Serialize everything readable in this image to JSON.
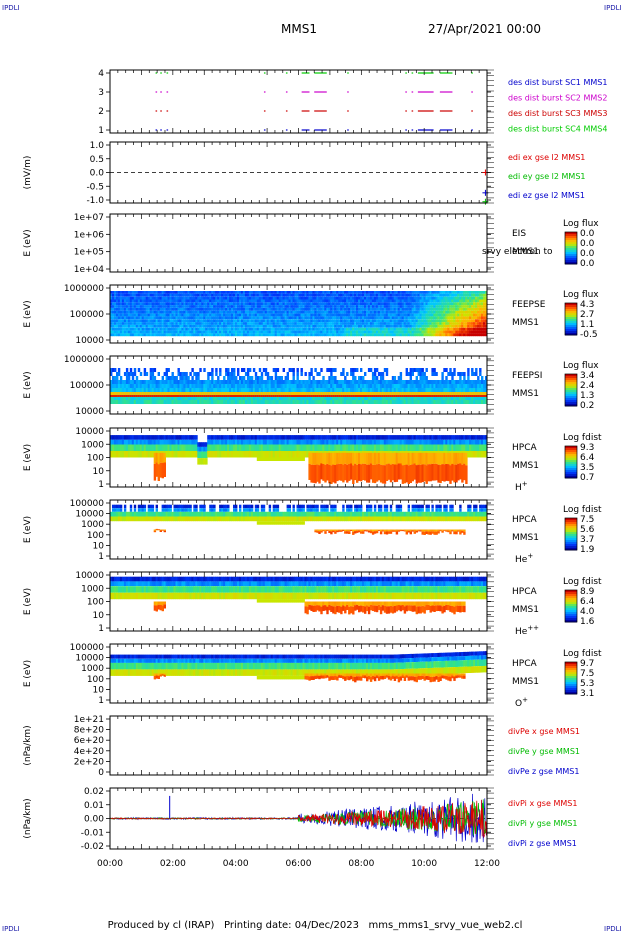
{
  "header": {
    "corner_label": "IPDLI",
    "spacecraft": "MMS1",
    "date": "27/Apr/2021 00:00"
  },
  "footer": {
    "produced": "Produced by cl (IRAP)",
    "printing": "Printing date: 04/Dec/2023",
    "file": "mms_mms1_srvy_vue_web2.cl"
  },
  "colors": {
    "mms1": "#0000cc",
    "mms2": "#cc00cc",
    "mms3": "#cc0000",
    "mms4": "#00cc00",
    "ex": "#dd0000",
    "ey": "#00bb00",
    "ez": "#0000cc"
  },
  "chart_data": [
    {
      "type": "timeline",
      "panel": "burst",
      "ylabel": "",
      "yticks": [
        "4",
        "3",
        "2",
        "1"
      ],
      "xlim": [
        "00:00",
        "12:00"
      ],
      "legend": [
        {
          "label": "des dist burst SC1 MMS1",
          "color": "#0000cc"
        },
        {
          "label": "des dist burst SC2 MMS2",
          "color": "#cc00cc"
        },
        {
          "label": "des dist burst SC3 MMS3",
          "color": "#cc0000"
        },
        {
          "label": "des dist burst SC4 MMS4",
          "color": "#00cc00"
        }
      ],
      "intervals_hours": [
        [
          1.45,
          1.5
        ],
        [
          1.6,
          1.65
        ],
        [
          1.8,
          1.85
        ],
        [
          4.9,
          4.95
        ],
        [
          5.6,
          5.65
        ],
        [
          6.1,
          6.35
        ],
        [
          6.5,
          6.9
        ],
        [
          7.55,
          7.6
        ],
        [
          9.4,
          9.45
        ],
        [
          9.6,
          9.65
        ],
        [
          9.8,
          10.3
        ],
        [
          10.5,
          10.9
        ],
        [
          11.5,
          11.55
        ]
      ]
    },
    {
      "type": "line",
      "panel": "edi",
      "ylabel": "(mV/m)",
      "yticks": [
        "1.0",
        "0.5",
        "0.0",
        "-0.5",
        "-1.0"
      ],
      "ylim": [
        -1.2,
        1.2
      ],
      "legend": [
        {
          "label": "edi ex gse l2 MMS1",
          "color": "#dd0000"
        },
        {
          "label": "edi ey gse l2 MMS1",
          "color": "#00bb00"
        },
        {
          "label": "edi ez gse l2 MMS1",
          "color": "#0000cc"
        }
      ],
      "points": [
        {
          "t": 11.95,
          "v": 0.0,
          "color": "#dd0000"
        },
        {
          "t": 11.95,
          "v": -0.8,
          "color": "#0000cc"
        },
        {
          "t": 11.95,
          "v": -1.15,
          "color": "#00bb00"
        }
      ]
    },
    {
      "type": "heatmap",
      "panel": "eis",
      "ylabel": "E (eV)",
      "yticks": [
        "1e+07",
        "1e+06",
        "1e+05",
        "1e+04"
      ],
      "labels": [
        "EIS",
        "MMS1"
      ],
      "overlay_text": "srvy electron to",
      "colorbar_title": "Log flux",
      "colorbar_ticks": [
        "0.0",
        "0.0",
        "0.0",
        "0.0"
      ],
      "pattern": "empty"
    },
    {
      "type": "heatmap",
      "panel": "feepse",
      "ylabel": "E (eV)",
      "yticks": [
        "1000000",
        "100000",
        "10000"
      ],
      "labels": [
        "FEEPSE",
        "MMS1"
      ],
      "colorbar_title": "Log flux",
      "colorbar_ticks": [
        "4.3",
        "2.7",
        "1.1",
        "-0.5"
      ],
      "pattern": "feepse"
    },
    {
      "type": "heatmap",
      "panel": "feepsi",
      "ylabel": "E (eV)",
      "yticks": [
        "1000000",
        "100000",
        "10000"
      ],
      "labels": [
        "FEEPSI",
        "MMS1"
      ],
      "colorbar_title": "Log flux",
      "colorbar_ticks": [
        "3.4",
        "2.4",
        "1.3",
        "0.2"
      ],
      "pattern": "feepsi"
    },
    {
      "type": "heatmap",
      "panel": "hpca_h",
      "ylabel": "E (eV)",
      "yticks": [
        "10000",
        "1000",
        "100",
        "10",
        "1"
      ],
      "labels": [
        "HPCA",
        "MMS1",
        "H+"
      ],
      "colorbar_title": "Log fdist",
      "colorbar_ticks": [
        "9.3",
        "6.4",
        "3.5",
        "0.7"
      ],
      "pattern": "hpca_h"
    },
    {
      "type": "heatmap",
      "panel": "hpca_he",
      "ylabel": "E (eV)",
      "yticks": [
        "100000",
        "10000",
        "1000",
        "100",
        "10",
        "1"
      ],
      "labels": [
        "HPCA",
        "MMS1",
        "He+"
      ],
      "colorbar_title": "Log fdist",
      "colorbar_ticks": [
        "7.5",
        "5.6",
        "3.7",
        "1.9"
      ],
      "pattern": "hpca_he"
    },
    {
      "type": "heatmap",
      "panel": "hpca_hepp",
      "ylabel": "E (eV)",
      "yticks": [
        "10000",
        "1000",
        "100",
        "10",
        "1"
      ],
      "labels": [
        "HPCA",
        "MMS1",
        "He++"
      ],
      "colorbar_title": "Log fdist",
      "colorbar_ticks": [
        "8.9",
        "6.4",
        "4.0",
        "1.6"
      ],
      "pattern": "hpca_hepp"
    },
    {
      "type": "heatmap",
      "panel": "hpca_o",
      "ylabel": "E (eV)",
      "yticks": [
        "100000",
        "10000",
        "1000",
        "100",
        "10",
        "1"
      ],
      "labels": [
        "HPCA",
        "MMS1",
        "O+"
      ],
      "colorbar_title": "Log fdist",
      "colorbar_ticks": [
        "9.7",
        "7.5",
        "5.3",
        "3.1"
      ],
      "pattern": "hpca_o"
    },
    {
      "type": "line",
      "panel": "divpe",
      "ylabel": "(nPa/km)",
      "yticks": [
        "1e+21",
        "8e+20",
        "6e+20",
        "4e+20",
        "2e+20",
        "0"
      ],
      "ylim": [
        0,
        1.1e+21
      ],
      "legend": [
        {
          "label": "divPe x gse MMS1",
          "color": "#dd0000"
        },
        {
          "label": "divPe y gse MMS1",
          "color": "#00bb00"
        },
        {
          "label": "divPe z gse MMS1",
          "color": "#0000cc"
        }
      ]
    },
    {
      "type": "line",
      "panel": "divpi",
      "ylabel": "(nPa/km)",
      "yticks": [
        "0.02",
        "0.01",
        "0.00",
        "-0.01",
        "-0.02"
      ],
      "ylim": [
        -0.027,
        0.027
      ],
      "legend": [
        {
          "label": "divPi x gse MMS1",
          "color": "#dd0000"
        },
        {
          "label": "divPi y gse MMS1",
          "color": "#00bb00"
        },
        {
          "label": "divPi z gse MMS1",
          "color": "#0000cc"
        }
      ],
      "noise_envelope": {
        "baseline_amp_to_6h": 0.0008,
        "amp_6h_to_12h": [
          0.004,
          0.008,
          0.012,
          0.018,
          0.025
        ],
        "spike_at_hours": 1.9,
        "spike_value": 0.02
      }
    }
  ],
  "time_axis": {
    "labels": [
      "00:00",
      "02:00",
      "04:00",
      "06:00",
      "08:00",
      "10:00",
      "12:00"
    ]
  }
}
